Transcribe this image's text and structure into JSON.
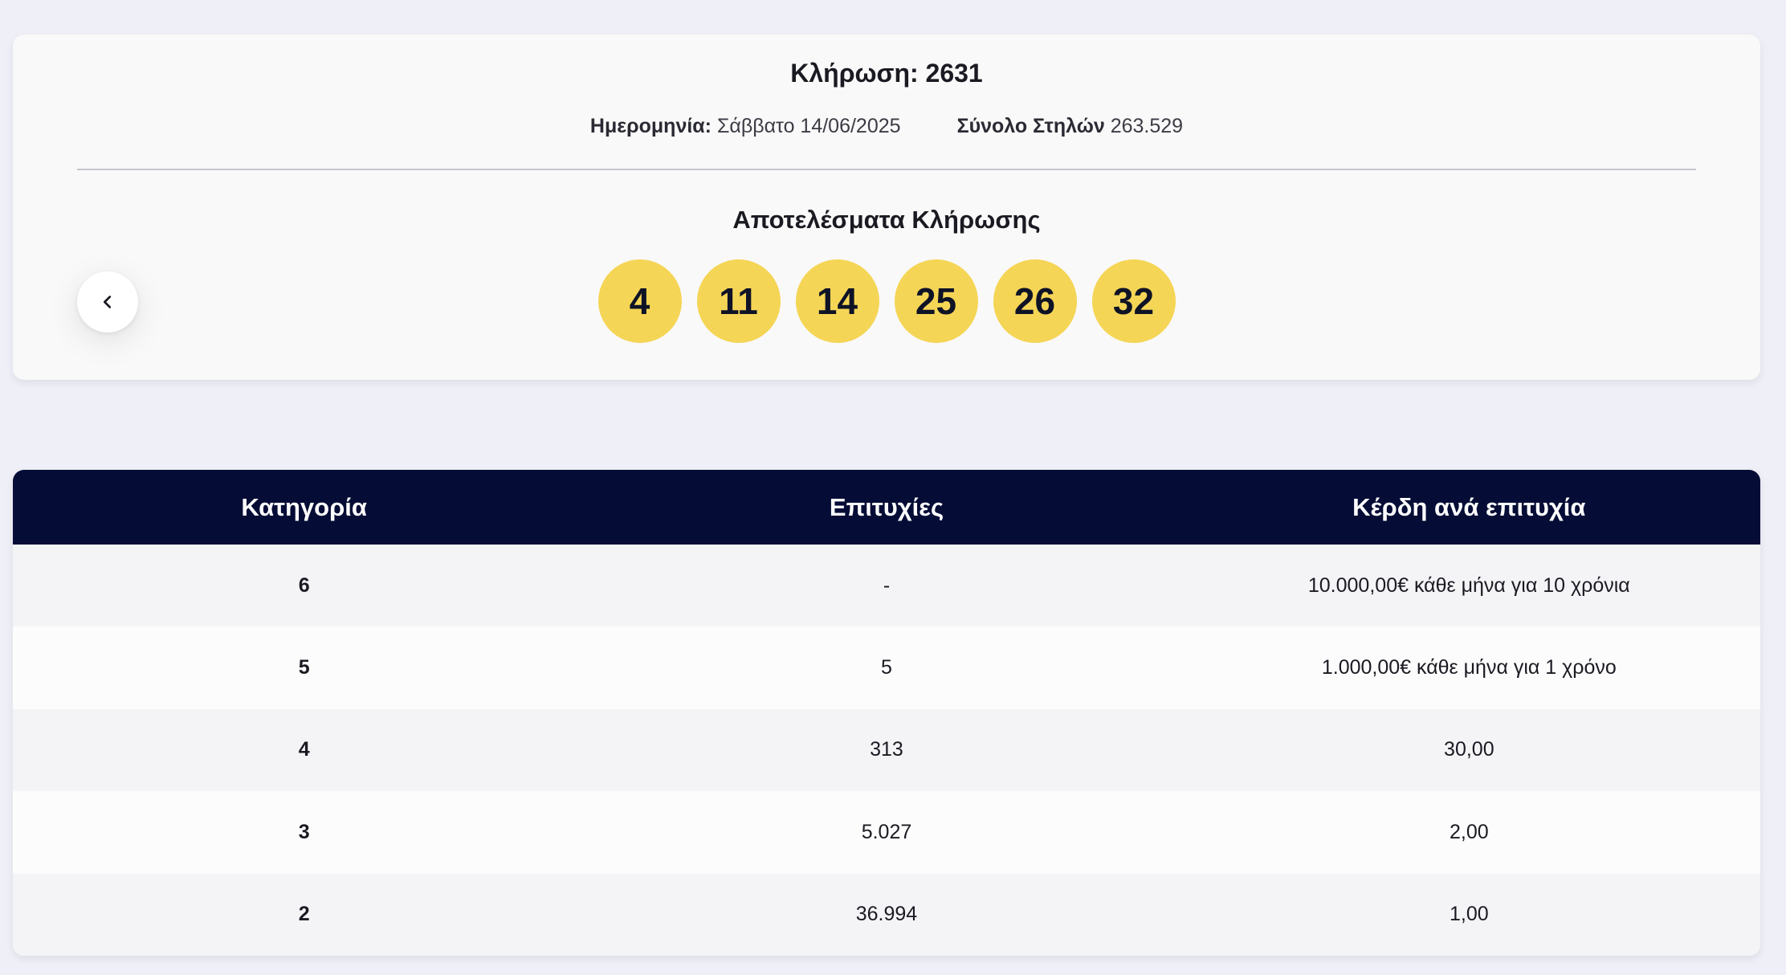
{
  "draw": {
    "title": "Κλήρωση: 2631",
    "date_label": "Ημερομηνία:",
    "date_value": "Σάββατο 14/06/2025",
    "columns_label": "Σύνολο Στηλών",
    "columns_value": "263.529",
    "results_title": "Αποτελέσματα Κλήρωσης",
    "numbers": [
      "4",
      "11",
      "14",
      "25",
      "26",
      "32"
    ],
    "ball_color": "#f5d556"
  },
  "nav": {
    "prev_icon": "chevron-left-icon"
  },
  "table": {
    "header_color": "#050d36",
    "headers": [
      "Κατηγορία",
      "Επιτυχίες",
      "Κέρδη ανά επιτυχία"
    ],
    "rows": [
      [
        "6",
        "-",
        "10.000,00€ κάθε μήνα για 10 χρόνια"
      ],
      [
        "5",
        "5",
        "1.000,00€ κάθε μήνα για 1 χρόνο"
      ],
      [
        "4",
        "313",
        "30,00"
      ],
      [
        "3",
        "5.027",
        "2,00"
      ],
      [
        "2",
        "36.994",
        "1,00"
      ]
    ]
  }
}
